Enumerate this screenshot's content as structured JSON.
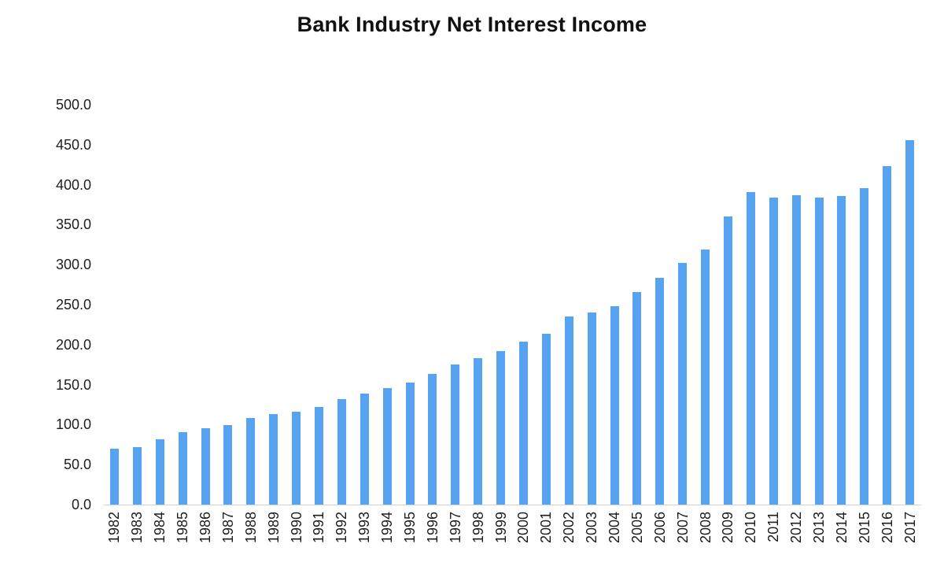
{
  "chart_data": {
    "type": "bar",
    "title": "Bank Industry Net Interest Income",
    "categories": [
      "1982",
      "1983",
      "1984",
      "1985",
      "1986",
      "1987",
      "1988",
      "1989",
      "1990",
      "1991",
      "1992",
      "1993",
      "1994",
      "1995",
      "1996",
      "1997",
      "1998",
      "1999",
      "2000",
      "2001",
      "2002",
      "2003",
      "2004",
      "2005",
      "2006",
      "2007",
      "2008",
      "2009",
      "2010",
      "2011",
      "2012",
      "2013",
      "2014",
      "2015",
      "2016",
      "2017"
    ],
    "values": [
      70,
      72,
      82,
      91,
      95,
      99,
      108,
      113,
      116,
      122,
      132,
      139,
      146,
      153,
      163,
      175,
      183,
      192,
      204,
      214,
      235,
      240,
      248,
      266,
      283,
      302,
      319,
      360,
      391,
      384,
      387,
      384,
      386,
      396,
      423,
      456
    ],
    "xlabel": "",
    "ylabel": "",
    "ylim": [
      0,
      500
    ],
    "ytick_step": 50,
    "ytick_decimals": 1,
    "grid": false,
    "bar_color": "#56a3f1",
    "axis_line_color": "#d4d4d4",
    "tick_label_color": "#1d1d1f",
    "title_color": "#111111"
  }
}
